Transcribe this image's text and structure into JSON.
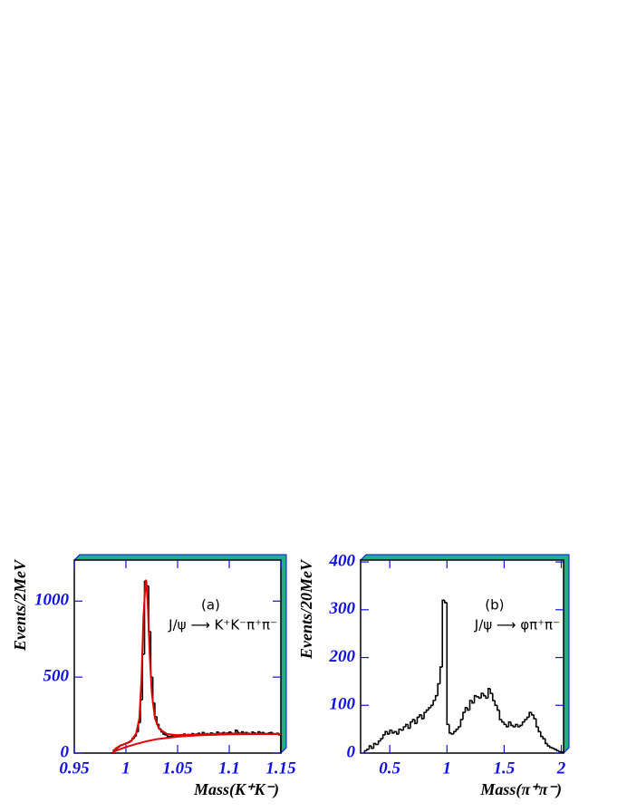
{
  "chart_data": [
    {
      "type": "histogram",
      "y_label": "Events/2MeV",
      "x_label": "Mass",
      "x_label_suffix": "(K⁺K⁻)",
      "annotations": [
        "(a)",
        "J/ψ ⟶ K⁺K⁻π⁺π⁻"
      ],
      "xlim": [
        0.95,
        1.15
      ],
      "ylim": [
        0,
        1270
      ],
      "xticks": [
        0.95,
        1,
        1.05,
        1.1,
        1.15
      ],
      "yticks": [
        0,
        500,
        1000
      ],
      "color": "#000000",
      "bins": [
        0.986,
        0.988,
        0.99,
        0.992,
        0.994,
        0.996,
        0.998,
        1.0,
        1.002,
        1.004,
        1.006,
        1.008,
        1.01,
        1.012,
        1.014,
        1.016,
        1.018,
        1.02,
        1.022,
        1.024,
        1.026,
        1.028,
        1.03,
        1.032,
        1.034,
        1.036,
        1.038,
        1.04,
        1.042,
        1.044,
        1.046,
        1.048,
        1.05,
        1.052,
        1.054,
        1.056,
        1.058,
        1.06,
        1.062,
        1.064,
        1.066,
        1.068,
        1.07,
        1.072,
        1.074,
        1.076,
        1.078,
        1.08,
        1.082,
        1.084,
        1.086,
        1.088,
        1.09,
        1.092,
        1.094,
        1.096,
        1.098,
        1.1,
        1.102,
        1.104,
        1.106,
        1.108,
        1.11,
        1.112,
        1.114,
        1.116,
        1.118,
        1.12,
        1.122,
        1.124,
        1.126,
        1.128,
        1.13,
        1.132,
        1.134,
        1.136,
        1.138,
        1.14,
        1.142,
        1.144,
        1.146,
        1.148,
        1.15
      ],
      "values": [
        0,
        20,
        30,
        40,
        50,
        55,
        60,
        65,
        70,
        80,
        95,
        110,
        140,
        200,
        350,
        650,
        1130,
        1100,
        800,
        500,
        330,
        240,
        190,
        160,
        140,
        125,
        120,
        110,
        108,
        115,
        105,
        118,
        112,
        120,
        115,
        125,
        118,
        122,
        120,
        128,
        118,
        125,
        130,
        122,
        135,
        120,
        128,
        125,
        132,
        128,
        120,
        138,
        125,
        130,
        135,
        128,
        132,
        138,
        130,
        125,
        150,
        135,
        130,
        140,
        128,
        135,
        130,
        125,
        138,
        132,
        128,
        140,
        130,
        135,
        128,
        125,
        132,
        135,
        128,
        125,
        130,
        120
      ],
      "curves": [
        {
          "color": "#e00000",
          "x": [
            0.987,
            0.99,
            0.995,
            1.0,
            1.005,
            1.01,
            1.013,
            1.015,
            1.017,
            1.019,
            1.0195,
            1.021,
            1.023,
            1.025,
            1.028,
            1.032,
            1.04,
            1.05,
            1.07,
            1.1,
            1.15
          ],
          "values": [
            0,
            30,
            50,
            62,
            80,
            130,
            230,
            480,
            900,
            1130,
            1140,
            1000,
            650,
            400,
            230,
            160,
            125,
            118,
            122,
            128,
            125
          ]
        },
        {
          "color": "#e00000",
          "x": [
            0.987,
            0.99,
            1.0,
            1.01,
            1.02,
            1.03,
            1.05,
            1.07,
            1.1,
            1.15
          ],
          "values": [
            0,
            15,
            40,
            60,
            78,
            92,
            108,
            117,
            124,
            126
          ]
        }
      ]
    },
    {
      "type": "histogram",
      "y_label": "Events/20MeV",
      "x_label": "Mass",
      "x_label_suffix": "(π⁺π⁻)",
      "annotations": [
        "(b)",
        "J/ψ ⟶ φπ⁺π⁻"
      ],
      "xlim": [
        0.245,
        2.02
      ],
      "ylim": [
        0,
        404
      ],
      "xticks": [
        0.5,
        1,
        1.5,
        2
      ],
      "yticks": [
        0,
        100,
        200,
        300,
        400
      ],
      "color": "#000000",
      "bins": [
        0.28,
        0.3,
        0.32,
        0.34,
        0.36,
        0.38,
        0.4,
        0.42,
        0.44,
        0.46,
        0.48,
        0.5,
        0.52,
        0.54,
        0.56,
        0.58,
        0.6,
        0.62,
        0.64,
        0.66,
        0.68,
        0.7,
        0.72,
        0.74,
        0.76,
        0.78,
        0.8,
        0.82,
        0.84,
        0.86,
        0.88,
        0.9,
        0.92,
        0.94,
        0.96,
        0.98,
        1.0,
        1.02,
        1.04,
        1.06,
        1.08,
        1.1,
        1.12,
        1.14,
        1.16,
        1.18,
        1.2,
        1.22,
        1.24,
        1.26,
        1.28,
        1.3,
        1.32,
        1.34,
        1.36,
        1.38,
        1.4,
        1.42,
        1.44,
        1.46,
        1.48,
        1.5,
        1.52,
        1.54,
        1.56,
        1.58,
        1.6,
        1.62,
        1.64,
        1.66,
        1.68,
        1.7,
        1.72,
        1.74,
        1.76,
        1.78,
        1.8,
        1.82,
        1.84,
        1.86,
        1.88,
        1.9,
        1.92,
        1.94,
        1.96,
        1.98,
        2.0,
        2.02
      ],
      "values": [
        5,
        8,
        15,
        10,
        20,
        18,
        25,
        30,
        38,
        45,
        40,
        48,
        42,
        45,
        40,
        50,
        48,
        55,
        60,
        52,
        65,
        70,
        62,
        75,
        80,
        72,
        85,
        90,
        95,
        100,
        110,
        120,
        145,
        180,
        320,
        315,
        60,
        42,
        40,
        45,
        50,
        55,
        70,
        85,
        95,
        90,
        110,
        105,
        120,
        118,
        115,
        125,
        120,
        115,
        135,
        125,
        110,
        100,
        90,
        70,
        65,
        60,
        55,
        65,
        58,
        55,
        60,
        55,
        58,
        65,
        70,
        75,
        85,
        80,
        72,
        55,
        45,
        35,
        30,
        20,
        15,
        12,
        10,
        8,
        5,
        3,
        2
      ],
      "curves": []
    }
  ]
}
